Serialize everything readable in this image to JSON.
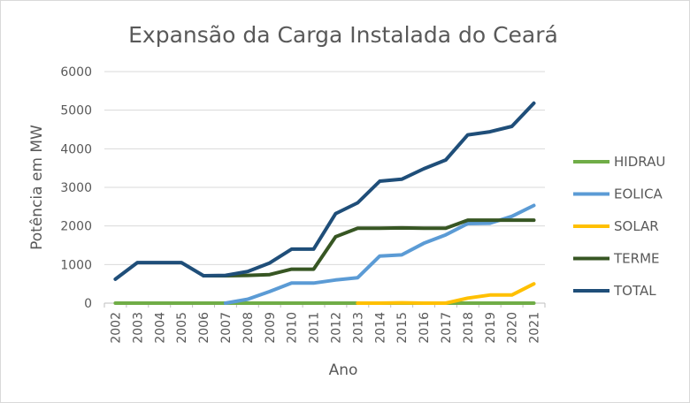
{
  "chart_data": {
    "type": "line",
    "title": "Expansão da Carga Instalada do Ceará",
    "xlabel": "Ano",
    "ylabel": "Potência em MW",
    "ylim": [
      0,
      6000
    ],
    "yticks": [
      "0",
      "1000",
      "2000",
      "3000",
      "4000",
      "5000",
      "6000"
    ],
    "grid": true,
    "legend_position": "right",
    "categories": [
      "2002",
      "2003",
      "2004",
      "2005",
      "2006",
      "2007",
      "2008",
      "2009",
      "2010",
      "2011",
      "2012",
      "2013",
      "2014",
      "2015",
      "2016",
      "2017",
      "2018",
      "2019",
      "2020",
      "2021"
    ],
    "series": [
      {
        "name": "HIDRAU",
        "color": "#70ad47",
        "values": [
          0,
          0,
          0,
          0,
          0,
          0,
          0,
          0,
          0,
          0,
          0,
          0,
          0,
          0,
          0,
          0,
          0,
          0,
          0,
          0
        ]
      },
      {
        "name": "EOLICA",
        "color": "#5b9bd5",
        "values": [
          null,
          null,
          null,
          null,
          null,
          0,
          100,
          300,
          520,
          520,
          600,
          660,
          1220,
          1250,
          1550,
          1770,
          2060,
          2070,
          2250,
          2530
        ]
      },
      {
        "name": "SOLAR",
        "color": "#ffc000",
        "values": [
          null,
          null,
          null,
          null,
          null,
          null,
          null,
          null,
          null,
          null,
          null,
          0,
          0,
          10,
          0,
          0,
          130,
          210,
          210,
          500
        ]
      },
      {
        "name": "TERME",
        "color": "#375623",
        "values": [
          null,
          null,
          null,
          null,
          710,
          710,
          720,
          740,
          880,
          880,
          1720,
          1940,
          1940,
          1950,
          1940,
          1940,
          2150,
          2150,
          2150,
          2150
        ]
      },
      {
        "name": "TOTAL",
        "color": "#1f4e79",
        "values": [
          620,
          1050,
          1050,
          1050,
          710,
          720,
          820,
          1040,
          1400,
          1400,
          2320,
          2600,
          3160,
          3210,
          3480,
          3710,
          4360,
          4440,
          4580,
          5180
        ]
      }
    ]
  }
}
